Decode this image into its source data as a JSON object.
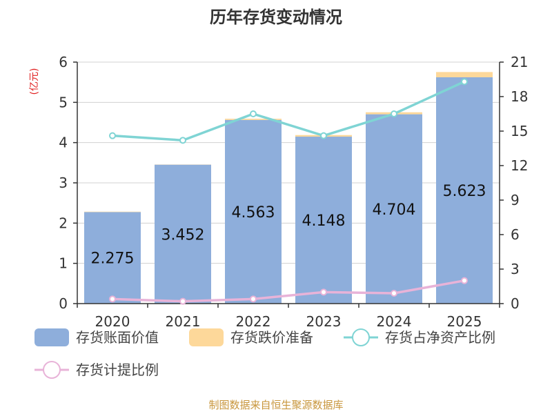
{
  "chart_data": {
    "type": "bar",
    "title": "历年存货变动情况",
    "categories": [
      "2020",
      "2021",
      "2022",
      "2023",
      "2024",
      "2025"
    ],
    "y_left": {
      "unit": "(亿元)",
      "range": [
        0,
        6
      ],
      "ticks": [
        0,
        1,
        2,
        3,
        4,
        5,
        6
      ]
    },
    "y_right": {
      "range": [
        0,
        21
      ],
      "ticks": [
        0,
        3,
        6,
        9,
        12,
        15,
        18,
        21
      ]
    },
    "series": [
      {
        "name": "存货账面价值",
        "kind": "bar",
        "axis": "left",
        "color": "#8eaedb",
        "values": [
          2.275,
          3.452,
          4.563,
          4.148,
          4.704,
          5.623
        ],
        "labels": [
          "2.275",
          "3.452",
          "4.563",
          "4.148",
          "4.704",
          "5.623"
        ]
      },
      {
        "name": "存货跌价准备",
        "kind": "bar-stack",
        "axis": "left",
        "color": "#fdd89a",
        "values": [
          0.01,
          0.005,
          0.03,
          0.04,
          0.05,
          0.13
        ]
      },
      {
        "name": "存货占净资产比例",
        "kind": "line",
        "axis": "right",
        "color": "#7fd4d4",
        "values": [
          14.6,
          14.2,
          16.5,
          14.6,
          16.5,
          19.3
        ]
      },
      {
        "name": "存货计提比例",
        "kind": "line",
        "axis": "right",
        "color": "#e8b3d8",
        "values": [
          0.4,
          0.2,
          0.4,
          1.0,
          0.9,
          2.0
        ]
      }
    ],
    "grid": true,
    "legend_position": "bottom"
  },
  "footer": {
    "source": "制图数据来自恒生聚源数据库"
  }
}
